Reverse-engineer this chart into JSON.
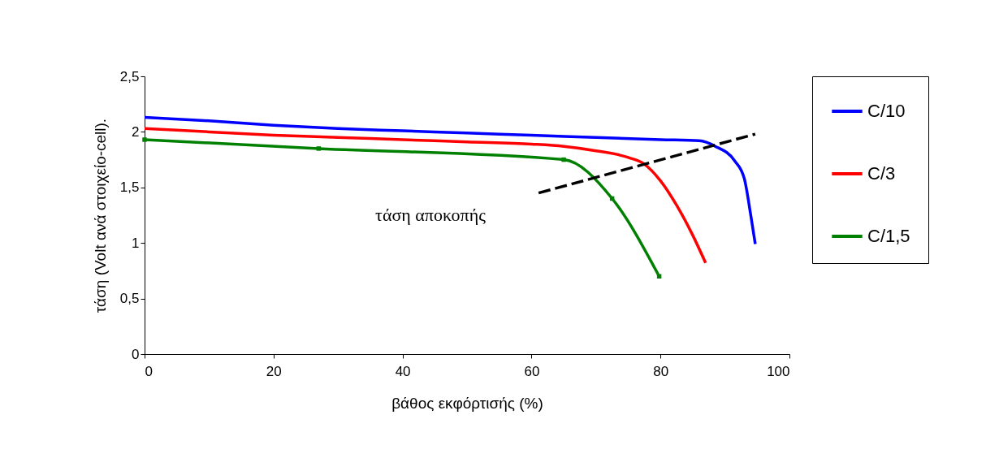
{
  "chart_data": {
    "type": "line",
    "xlabel": "βάθος εκφόρτισής (%)",
    "ylabel": "τάση (Volt ανά στοιχείο-cell).",
    "xlim": [
      0,
      100
    ],
    "xticks": [
      0,
      20,
      40,
      60,
      80,
      100
    ],
    "ylim": [
      0,
      2.5
    ],
    "yticks": [
      0,
      {
        "value": 0.5,
        "label": "0,5"
      },
      1,
      {
        "value": 1.5,
        "label": "1,5"
      },
      2,
      {
        "value": 2.5,
        "label": "2,5"
      }
    ],
    "grid": false,
    "legend": "right",
    "line_style": "solid",
    "marker": "none",
    "annotations": [
      "τάση αποκοπής"
    ],
    "series": [
      {
        "name": "C/10",
        "color": "#0000ff",
        "x": [
          0,
          10,
          20,
          30,
          40,
          50,
          60,
          70,
          80,
          86,
          88.5,
          91.5,
          93,
          94,
          94.7
        ],
        "values": [
          2.13,
          2.1,
          2.06,
          2.03,
          2.01,
          1.99,
          1.97,
          1.95,
          1.93,
          1.92,
          1.87,
          1.74,
          1.58,
          1.25,
          0.99
        ]
      },
      {
        "name": "C/3",
        "color": "#ff0000",
        "x": [
          0,
          10,
          20,
          30,
          40,
          50,
          60,
          65,
          70,
          75,
          77.5,
          80,
          82.5,
          85,
          87
        ],
        "values": [
          2.03,
          2.0,
          1.97,
          1.95,
          1.93,
          1.91,
          1.89,
          1.87,
          1.83,
          1.77,
          1.71,
          1.56,
          1.34,
          1.07,
          0.82
        ]
      },
      {
        "name": "C/1,5",
        "color": "#008000",
        "marker": "square",
        "x": [
          0,
          27,
          65,
          72.5,
          79.8
        ],
        "values": [
          1.93,
          1.85,
          1.75,
          1.4,
          0.7
        ]
      },
      {
        "color": "#000000",
        "line_style": "dashed",
        "x": [
          61.1,
          94.7
        ],
        "values": [
          1.45,
          1.98
        ]
      }
    ]
  }
}
